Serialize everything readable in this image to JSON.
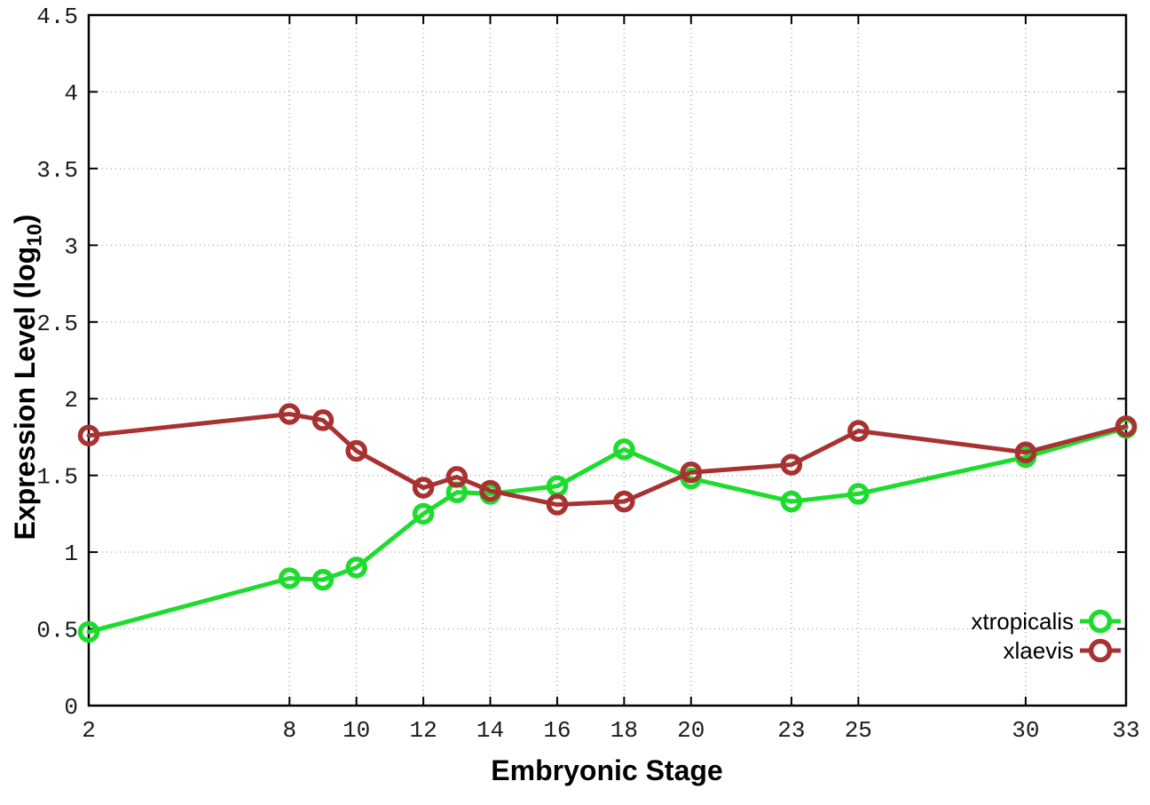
{
  "chart_data": {
    "type": "line",
    "title": "",
    "xlabel": "Embryonic Stage",
    "ylabel": "Expression Level (log10)",
    "ylabel_parts": {
      "main": "Expression Level (log",
      "sub": "10",
      "end": ")"
    },
    "xlim": [
      2,
      33
    ],
    "ylim": [
      0,
      4.5
    ],
    "grid": true,
    "legend_position": "bottom-right",
    "marker_style": "open-circle",
    "x": [
      2,
      8,
      9,
      10,
      12,
      13,
      14,
      16,
      18,
      20,
      23,
      25,
      30,
      33
    ],
    "series": [
      {
        "name": "xtropicalis",
        "color": "#1edc2e",
        "values": [
          0.48,
          0.83,
          0.82,
          0.9,
          1.25,
          1.39,
          1.38,
          1.43,
          1.67,
          1.48,
          1.33,
          1.38,
          1.62,
          1.81
        ]
      },
      {
        "name": "xlaevis",
        "color": "#a83232",
        "values": [
          1.76,
          1.9,
          1.86,
          1.66,
          1.42,
          1.49,
          1.4,
          1.31,
          1.33,
          1.52,
          1.57,
          1.79,
          1.65,
          1.82
        ]
      }
    ],
    "x_tick_values": [
      2,
      8,
      10,
      12,
      14,
      16,
      18,
      20,
      23,
      25,
      30,
      33
    ],
    "x_tick_labels": [
      "2",
      "8",
      "10",
      "12",
      "14",
      "16",
      "18",
      "20",
      "23",
      "25",
      "30",
      "33"
    ],
    "y_tick_values": [
      0,
      0.5,
      1,
      1.5,
      2,
      2.5,
      3,
      3.5,
      4,
      4.5
    ],
    "y_tick_labels": [
      "0",
      "0.5",
      "1",
      "1.5",
      "2",
      "2.5",
      "3",
      "3.5",
      "4",
      "4.5"
    ],
    "colors": {
      "axis": "#000000",
      "grid": "#a8a8a8",
      "tick_text": "#1c1c1c"
    }
  }
}
